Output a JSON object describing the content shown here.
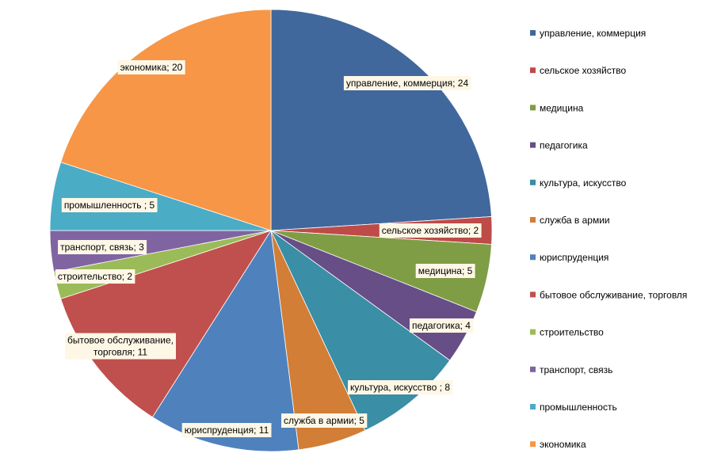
{
  "chart_data": {
    "type": "pie",
    "title": "",
    "legend_position": "right",
    "slices": [
      {
        "label": "управление, коммерция",
        "value": 24,
        "color": "#41689C",
        "data_label": "управление, коммерция;  24"
      },
      {
        "label": "сельское хозяйство",
        "value": 2,
        "color": "#BE4B48",
        "data_label": "сельское хозяйство; 2"
      },
      {
        "label": "медицина",
        "value": 5,
        "color": "#7F9D45",
        "data_label": "медицина; 5"
      },
      {
        "label": "педагогика",
        "value": 4,
        "color": "#674E87",
        "data_label": "педагогика; 4"
      },
      {
        "label": "культура, искусство",
        "value": 8,
        "color": "#3A8EA5",
        "data_label": "культура, искусство ; 8"
      },
      {
        "label": "служба в армии",
        "value": 5,
        "color": "#D27E36",
        "data_label": "служба в армии; 5"
      },
      {
        "label": "юриспруденция",
        "value": 11,
        "color": "#4F81BD",
        "data_label": "юриспруденция;  11"
      },
      {
        "label": "бытовое обслуживание, торговля",
        "value": 11,
        "color": "#C0504D",
        "data_label": "бытовое обслуживание, торговля; 11"
      },
      {
        "label": "строительство",
        "value": 2,
        "color": "#9BBB59",
        "data_label": "строительство; 2"
      },
      {
        "label": "транспорт, связь",
        "value": 3,
        "color": "#8064A2",
        "data_label": "транспорт, связь; 3"
      },
      {
        "label": "промышленность",
        "value": 5,
        "color": "#4BACC6",
        "data_label": "промышленность ; 5"
      },
      {
        "label": "экономика",
        "value": 20,
        "color": "#F79646",
        "data_label": "экономика; 20"
      }
    ]
  }
}
